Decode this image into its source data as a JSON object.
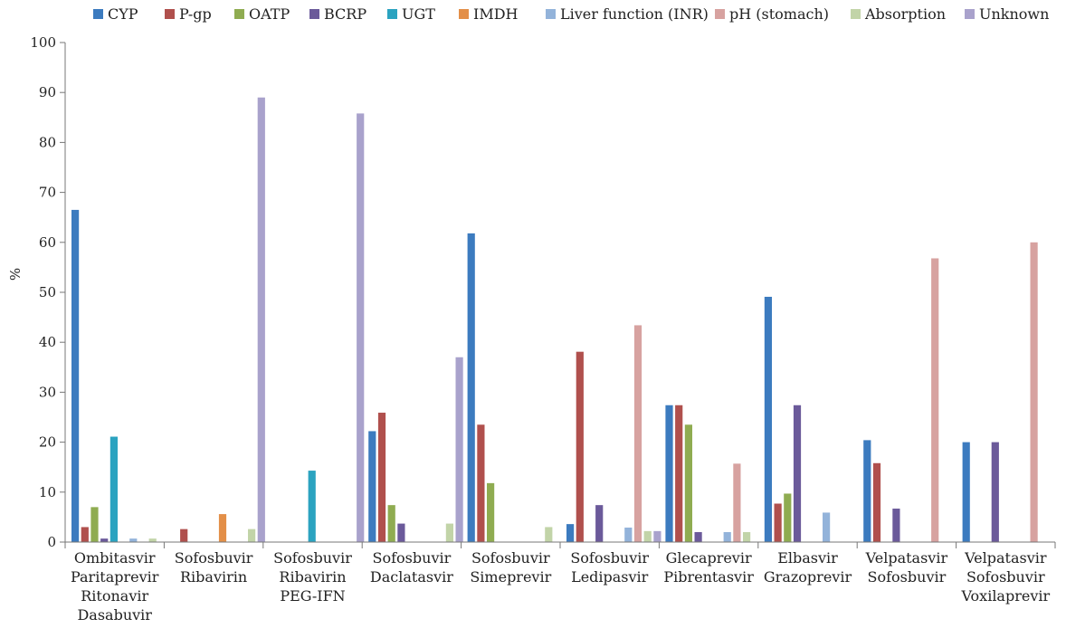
{
  "chart_data": {
    "type": "bar",
    "ylabel": "%",
    "ylim": [
      0,
      100
    ],
    "yticks": [
      0,
      10,
      20,
      30,
      40,
      50,
      60,
      70,
      80,
      90,
      100
    ],
    "grid": false,
    "legend_position": "top",
    "categories": [
      [
        "Ombitasvir",
        "Paritaprevir",
        "Ritonavir",
        "Dasabuvir"
      ],
      [
        "Sofosbuvir",
        "Ribavirin"
      ],
      [
        "Sofosbuvir",
        "Ribavirin",
        "PEG-IFN"
      ],
      [
        "Sofosbuvir",
        "Daclatasvir"
      ],
      [
        "Sofosbuvir",
        "Simeprevir"
      ],
      [
        "Sofosbuvir",
        "Ledipasvir"
      ],
      [
        "Glecaprevir",
        "Pibrentasvir"
      ],
      [
        "Elbasvir",
        "Grazoprevir"
      ],
      [
        "Velpatasvir",
        "Sofosbuvir"
      ],
      [
        "Velpatasvir",
        "Sofosbuvir",
        "Voxilaprevir"
      ]
    ],
    "series": [
      {
        "name": "CYP",
        "color": "#3c7bbf",
        "values": [
          66.5,
          0,
          0,
          22.2,
          61.8,
          3.6,
          27.4,
          49.1,
          20.4,
          20
        ]
      },
      {
        "name": "P-gp",
        "color": "#b0504d",
        "values": [
          3,
          2.6,
          0,
          25.9,
          23.5,
          38.1,
          27.4,
          7.7,
          15.8,
          0
        ]
      },
      {
        "name": "OATP",
        "color": "#8fac51",
        "values": [
          7,
          0,
          0,
          7.4,
          11.8,
          0,
          23.5,
          9.7,
          0,
          0
        ]
      },
      {
        "name": "BCRP",
        "color": "#6b5a9a",
        "values": [
          0.7,
          0,
          0,
          3.7,
          0,
          7.4,
          2,
          27.4,
          6.7,
          20
        ]
      },
      {
        "name": "UGT",
        "color": "#2ba3c0",
        "values": [
          21.1,
          0,
          14.3,
          0,
          0,
          0,
          0,
          0,
          0,
          0
        ]
      },
      {
        "name": "IMDH",
        "color": "#e38f48",
        "values": [
          0,
          5.6,
          0,
          0,
          0,
          0,
          0,
          0,
          0,
          0
        ]
      },
      {
        "name": "Liver function (INR)",
        "color": "#93b3da",
        "values": [
          0.7,
          0,
          0,
          0,
          0,
          2.9,
          2,
          5.9,
          0,
          0
        ]
      },
      {
        "name": "pH (stomach)",
        "color": "#d7a2a0",
        "values": [
          0,
          0,
          0,
          0,
          0,
          43.4,
          15.7,
          0,
          56.8,
          60
        ]
      },
      {
        "name": "Absorption",
        "color": "#c2d4a8",
        "values": [
          0.7,
          2.6,
          0,
          3.7,
          3,
          2.2,
          2,
          0,
          0,
          0
        ]
      },
      {
        "name": "Unknown",
        "color": "#a9a2cc",
        "values": [
          0,
          89,
          85.8,
          37,
          0,
          2.2,
          0,
          0,
          0,
          0
        ]
      }
    ]
  }
}
